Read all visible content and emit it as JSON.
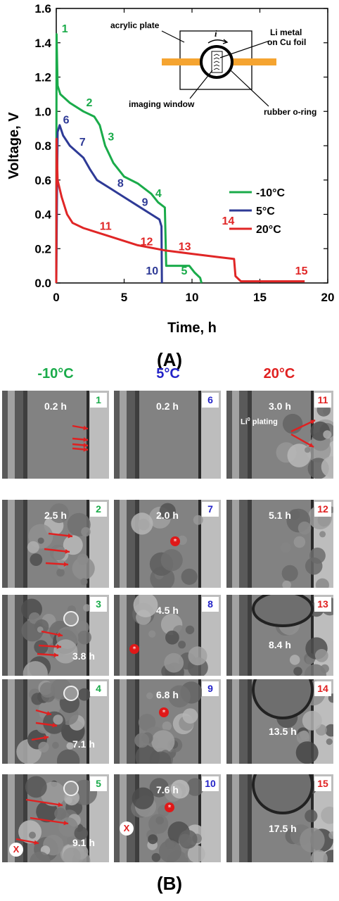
{
  "chart_data": {
    "type": "line",
    "xlabel": "Time, h",
    "ylabel": "Voltage, V",
    "xlim": [
      0,
      20
    ],
    "ylim": [
      0,
      1.6
    ],
    "xticks": [
      "0",
      "5",
      "10",
      "15",
      "20"
    ],
    "yticks": [
      "0.0",
      "0.2",
      "0.4",
      "0.6",
      "0.8",
      "1.0",
      "1.2",
      "1.4",
      "1.6"
    ],
    "legend_position": "right",
    "series": [
      {
        "name": "-10°C",
        "color": "#1aab4a",
        "points": [
          [
            0,
            0
          ],
          [
            0.02,
            1.45
          ],
          [
            0.1,
            1.15
          ],
          [
            0.3,
            1.1
          ],
          [
            1,
            1.05
          ],
          [
            2,
            1.0
          ],
          [
            2.8,
            0.97
          ],
          [
            3.2,
            0.92
          ],
          [
            3.6,
            0.8
          ],
          [
            4.2,
            0.7
          ],
          [
            5,
            0.62
          ],
          [
            6,
            0.58
          ],
          [
            7,
            0.52
          ],
          [
            7.5,
            0.47
          ],
          [
            8,
            0.44
          ],
          [
            8.1,
            0.1
          ],
          [
            9.8,
            0.1
          ],
          [
            10.2,
            0.06
          ],
          [
            10.6,
            0.03
          ],
          [
            10.7,
            0
          ]
        ]
      },
      {
        "name": "5°C",
        "color": "#2e3a96",
        "points": [
          [
            0,
            0
          ],
          [
            0.05,
            0.5
          ],
          [
            0.1,
            0.88
          ],
          [
            0.25,
            0.92
          ],
          [
            0.5,
            0.86
          ],
          [
            1,
            0.8
          ],
          [
            2,
            0.73
          ],
          [
            2.5,
            0.66
          ],
          [
            3,
            0.6
          ],
          [
            4,
            0.55
          ],
          [
            5,
            0.5
          ],
          [
            6,
            0.45
          ],
          [
            7,
            0.4
          ],
          [
            7.6,
            0.37
          ],
          [
            7.75,
            0.33
          ],
          [
            7.78,
            0
          ]
        ]
      },
      {
        "name": "20°C",
        "color": "#e02626",
        "points": [
          [
            0,
            0
          ],
          [
            0.02,
            0.84
          ],
          [
            0.1,
            0.6
          ],
          [
            0.4,
            0.5
          ],
          [
            0.8,
            0.4
          ],
          [
            1.2,
            0.35
          ],
          [
            2,
            0.32
          ],
          [
            4,
            0.27
          ],
          [
            6,
            0.22
          ],
          [
            8,
            0.19
          ],
          [
            10,
            0.17
          ],
          [
            12,
            0.15
          ],
          [
            13.1,
            0.14
          ],
          [
            13.2,
            0.04
          ],
          [
            13.6,
            0.01
          ],
          [
            18.3,
            0.01
          ]
        ]
      }
    ],
    "annotations": [
      {
        "text": "1",
        "x": 0.4,
        "y": 1.46,
        "series": 0
      },
      {
        "text": "2",
        "x": 2.2,
        "y": 1.03,
        "series": 0
      },
      {
        "text": "3",
        "x": 3.8,
        "y": 0.83,
        "series": 0
      },
      {
        "text": "4",
        "x": 7.3,
        "y": 0.5,
        "series": 0
      },
      {
        "text": "5",
        "x": 9.2,
        "y": 0.05,
        "series": 0
      },
      {
        "text": "6",
        "x": 0.5,
        "y": 0.93,
        "series": 1
      },
      {
        "text": "7",
        "x": 1.7,
        "y": 0.8,
        "series": 1
      },
      {
        "text": "8",
        "x": 4.5,
        "y": 0.56,
        "series": 1
      },
      {
        "text": "9",
        "x": 6.3,
        "y": 0.45,
        "series": 1
      },
      {
        "text": "10",
        "x": 6.6,
        "y": 0.05,
        "series": 1
      },
      {
        "text": "11",
        "x": 3.2,
        "y": 0.31,
        "series": 2
      },
      {
        "text": "12",
        "x": 6.2,
        "y": 0.22,
        "series": 2
      },
      {
        "text": "13",
        "x": 9.0,
        "y": 0.19,
        "series": 2
      },
      {
        "text": "14",
        "x": 12.2,
        "y": 0.34,
        "series": 2
      },
      {
        "text": "15",
        "x": 17.6,
        "y": 0.05,
        "series": 2
      }
    ],
    "inset": {
      "acrylic_plate": "acrylic plate",
      "li_metal_line1": "Li metal",
      "li_metal_line2": "on Cu foil",
      "imaging_window": "imaging window",
      "rubber_oring": "rubber o-ring",
      "current_symbol": "i"
    }
  },
  "panel_a_label": "(A)",
  "panel_b_label": "(B)",
  "columns": [
    {
      "header": "-10°C",
      "color": "#1aab4a",
      "frames": [
        {
          "num": "1",
          "time": "0.2 h",
          "x_marker": ""
        },
        {
          "num": "2",
          "time": "2.5 h",
          "x_marker": ""
        },
        {
          "num": "3",
          "time": "3.8 h",
          "x_marker": ""
        },
        {
          "num": "4",
          "time": "7.1 h",
          "x_marker": ""
        },
        {
          "num": "5",
          "time": "9.1 h",
          "x_marker": "X"
        }
      ]
    },
    {
      "header": "5°C",
      "color": "#2424c8",
      "frames": [
        {
          "num": "6",
          "time": "0.2 h",
          "x_marker": ""
        },
        {
          "num": "7",
          "time": "2.0 h",
          "x_marker": ""
        },
        {
          "num": "8",
          "time": "4.5 h",
          "x_marker": ""
        },
        {
          "num": "9",
          "time": "6.8 h",
          "x_marker": ""
        },
        {
          "num": "10",
          "time": "7.6 h",
          "x_marker": "X"
        }
      ]
    },
    {
      "header": "20°C",
      "color": "#e02020",
      "frames": [
        {
          "num": "11",
          "time": "3.0 h",
          "x_marker": ""
        },
        {
          "num": "12",
          "time": "5.1 h",
          "x_marker": ""
        },
        {
          "num": "13",
          "time": "8.4 h",
          "x_marker": ""
        },
        {
          "num": "14",
          "time": "13.5 h",
          "x_marker": ""
        },
        {
          "num": "15",
          "time": "17.5 h",
          "x_marker": ""
        }
      ]
    }
  ],
  "plating_label": {
    "prefix": "Li",
    "sup": "0",
    "suffix": " plating"
  },
  "star_symbol": "*"
}
